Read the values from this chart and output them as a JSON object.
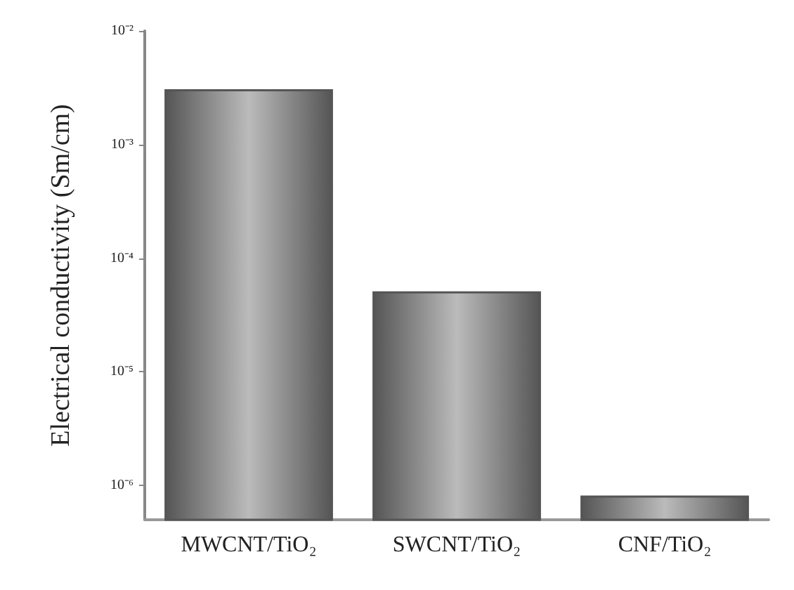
{
  "chart_data": {
    "type": "bar",
    "ylabel": "Electrical conductivity (Sm/cm)",
    "categories": [
      "MWCNT/TiO₂",
      "SWCNT/TiO₂",
      "CNF/TiO₂"
    ],
    "values": [
      0.003,
      5e-05,
      8e-07
    ],
    "color": "#555555",
    "log": true,
    "ylim": [
      5e-07,
      0.01
    ],
    "yticks": [
      {
        "value": 1e-06,
        "label": "10⁻⁶"
      },
      {
        "value": 1e-05,
        "label": "10⁻⁵"
      },
      {
        "value": 0.0001,
        "label": "10⁻⁴"
      },
      {
        "value": 0.001,
        "label": "10⁻³"
      },
      {
        "value": 0.01,
        "label": "10⁻²"
      }
    ],
    "grid": false
  }
}
